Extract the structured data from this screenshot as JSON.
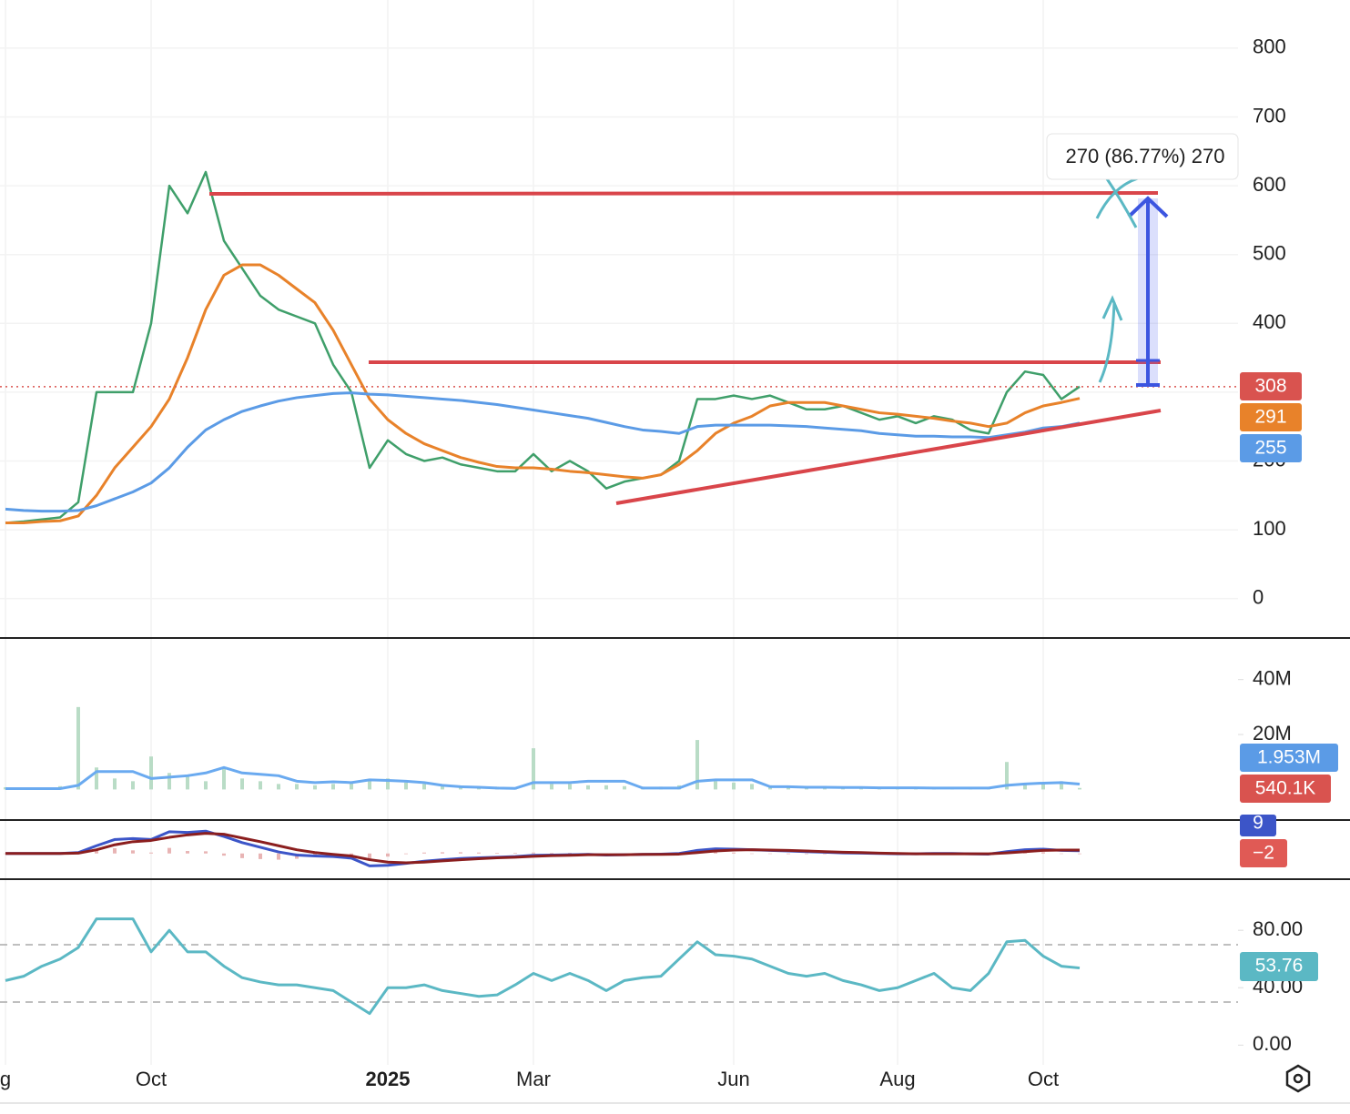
{
  "chart_data": [
    {
      "type": "line",
      "annotation": "270 (86.77%) 270",
      "ylim": [
        -56,
        870
      ],
      "yticks": [
        0,
        100,
        200,
        300,
        400,
        500,
        600,
        700,
        800
      ],
      "grid": true,
      "price_line": true,
      "series": [
        {
          "color": "#3f9f6a",
          "values": [
            110,
            112,
            115,
            118,
            140,
            300,
            300,
            300,
            400,
            600,
            560,
            620,
            520,
            480,
            440,
            420,
            410,
            400,
            340,
            300,
            190,
            230,
            210,
            200,
            205,
            195,
            190,
            185,
            185,
            210,
            185,
            200,
            185,
            160,
            170,
            175,
            180,
            200,
            290,
            290,
            295,
            290,
            295,
            285,
            275,
            275,
            280,
            270,
            260,
            265,
            255,
            265,
            260,
            245,
            240,
            300,
            330,
            325,
            290,
            308
          ]
        },
        {
          "color": "#e8822a",
          "values": [
            110,
            110,
            112,
            113,
            120,
            150,
            190,
            220,
            250,
            290,
            350,
            420,
            470,
            485,
            485,
            470,
            450,
            430,
            390,
            340,
            290,
            260,
            240,
            225,
            215,
            205,
            198,
            192,
            190,
            190,
            188,
            185,
            183,
            180,
            177,
            175,
            180,
            195,
            215,
            240,
            255,
            265,
            280,
            285,
            285,
            285,
            280,
            275,
            270,
            268,
            265,
            262,
            258,
            255,
            250,
            255,
            270,
            280,
            285,
            291
          ]
        },
        {
          "color": "#5b9be6",
          "values": [
            130,
            128,
            127,
            127,
            128,
            135,
            145,
            155,
            168,
            190,
            220,
            245,
            260,
            272,
            280,
            287,
            292,
            295,
            298,
            299,
            297,
            296,
            294,
            292,
            290,
            288,
            285,
            282,
            278,
            274,
            270,
            266,
            262,
            256,
            250,
            245,
            243,
            240,
            250,
            252,
            252,
            252,
            252,
            251,
            250,
            248,
            246,
            244,
            240,
            238,
            236,
            236,
            235,
            235,
            234,
            238,
            242,
            248,
            250,
            255
          ]
        }
      ]
    },
    {
      "type": "bar",
      "ylim": [
        -10.8,
        54.8
      ],
      "yticks": [
        {
          "value": 20,
          "label": "20M"
        },
        {
          "value": 40,
          "label": "40M"
        }
      ],
      "series": [
        {
          "color": "#b9dcc6",
          "values": [
            0.8,
            0.6,
            0.7,
            1.2,
            30,
            8,
            4,
            3,
            12,
            6,
            5,
            3,
            8,
            4,
            3,
            2,
            2,
            1.5,
            2,
            2.5,
            3,
            4,
            2.5,
            2,
            1.5,
            1,
            1,
            1,
            0.8,
            15,
            2,
            2,
            1.5,
            1.5,
            1.2,
            1,
            1,
            1.5,
            18,
            3,
            2.5,
            2,
            1.5,
            1.2,
            1,
            1,
            0.8,
            0.8,
            0.7,
            0.7,
            0.7,
            0.6,
            0.6,
            0.6,
            0.6,
            10,
            2,
            2,
            3,
            0.5401
          ],
          "value_labels": [
            null,
            null,
            null,
            null,
            null,
            null,
            null,
            null,
            null,
            null,
            null,
            null,
            null,
            null,
            null,
            null,
            null,
            null,
            null,
            null,
            null,
            null,
            null,
            null,
            null,
            null,
            null,
            null,
            null,
            null,
            null,
            null,
            null,
            null,
            null,
            null,
            null,
            null,
            null,
            null,
            null,
            null,
            null,
            null,
            null,
            null,
            null,
            null,
            null,
            null,
            null,
            null,
            null,
            null,
            null,
            null,
            null,
            null,
            null,
            "540.1K"
          ]
        },
        {
          "type": "line",
          "color": "#6aaaf0",
          "values": [
            0.3,
            0.3,
            0.3,
            0.3,
            1.5,
            6.5,
            6.5,
            6.5,
            4,
            4.5,
            5,
            6,
            8,
            6,
            5.5,
            5,
            3,
            2.5,
            2.8,
            2.5,
            3.5,
            3.3,
            3,
            2.5,
            1.5,
            1,
            0.8,
            0.5,
            0.4,
            2.5,
            2.5,
            2.5,
            3,
            3,
            3,
            0.5,
            0.5,
            0.5,
            3,
            3.5,
            3.5,
            3.5,
            1,
            1,
            0.8,
            0.8,
            0.7,
            0.7,
            0.6,
            0.6,
            0.6,
            0.5,
            0.5,
            0.5,
            0.5,
            1.5,
            2,
            2.3,
            2.5,
            1.953
          ],
          "value_labels": [
            null,
            null,
            null,
            null,
            null,
            null,
            null,
            null,
            null,
            null,
            null,
            null,
            null,
            null,
            null,
            null,
            null,
            null,
            null,
            null,
            null,
            null,
            null,
            null,
            null,
            null,
            null,
            null,
            null,
            null,
            null,
            null,
            null,
            null,
            null,
            null,
            null,
            null,
            null,
            null,
            null,
            null,
            null,
            null,
            null,
            null,
            null,
            null,
            null,
            null,
            null,
            null,
            null,
            null,
            null,
            null,
            null,
            null,
            null,
            "1.953M"
          ]
        }
      ]
    },
    {
      "type": "line",
      "ylim": [
        -80,
        105
      ],
      "series": [
        {
          "type": "bar",
          "color": "#e8b4b4",
          "values": [
            0,
            0,
            0,
            0,
            2,
            13,
            17,
            10,
            3,
            18,
            8,
            7,
            -7,
            -15,
            -18,
            -20,
            -17,
            -11,
            -7,
            -7,
            -20,
            -10,
            -2,
            3,
            4,
            4,
            3,
            2,
            2,
            3,
            2,
            2,
            1,
            -1,
            0,
            0,
            1,
            2,
            7,
            7,
            3,
            0,
            -1,
            -2,
            -2,
            -2,
            -2,
            -2,
            -1,
            -1,
            0,
            1,
            1,
            0,
            -1,
            4,
            6,
            4,
            -1,
            -2
          ],
          "value_labels": [
            null,
            null,
            null,
            null,
            null,
            null,
            null,
            null,
            null,
            null,
            null,
            null,
            null,
            null,
            null,
            null,
            null,
            null,
            null,
            null,
            null,
            null,
            null,
            null,
            null,
            null,
            null,
            null,
            null,
            null,
            null,
            null,
            null,
            null,
            null,
            null,
            null,
            null,
            null,
            null,
            null,
            null,
            null,
            null,
            null,
            null,
            null,
            null,
            null,
            null,
            null,
            null,
            null,
            null,
            null,
            null,
            null,
            null,
            null,
            "−2"
          ]
        },
        {
          "color": "#3c55c8",
          "values": [
            0,
            0,
            0,
            0,
            3,
            25,
            45,
            48,
            45,
            70,
            68,
            72,
            55,
            35,
            20,
            5,
            -5,
            -8,
            -10,
            -15,
            -40,
            -38,
            -32,
            -25,
            -20,
            -16,
            -14,
            -12,
            -10,
            -6,
            -5,
            -4,
            -3,
            -5,
            -4,
            -3,
            -2,
            0,
            10,
            15,
            14,
            12,
            10,
            8,
            6,
            4,
            2,
            1,
            0,
            -1,
            -1,
            0,
            0,
            -1,
            -2,
            6,
            12,
            14,
            10,
            9
          ]
        },
        {
          "color": "#8b1e1e",
          "values": [
            0,
            0,
            0,
            0,
            1,
            12,
            28,
            38,
            42,
            52,
            60,
            65,
            62,
            50,
            38,
            25,
            12,
            3,
            -3,
            -8,
            -20,
            -28,
            -30,
            -28,
            -24,
            -20,
            -17,
            -14,
            -12,
            -9,
            -7,
            -6,
            -4,
            -4,
            -4,
            -3,
            -3,
            -2,
            3,
            8,
            11,
            12,
            11,
            10,
            8,
            6,
            4,
            3,
            1,
            0,
            -1,
            -1,
            -1,
            -1,
            -1,
            2,
            6,
            10,
            11,
            11
          ]
        }
      ]
    },
    {
      "type": "line",
      "ylim": [
        -13.75,
        115
      ],
      "yticks": [
        {
          "value": 0,
          "label": "0.00"
        },
        {
          "value": 40,
          "label": "40.00"
        },
        {
          "value": 80,
          "label": "80.00"
        }
      ],
      "levels": [
        70,
        30
      ],
      "categories": [
        "g",
        null,
        null,
        null,
        null,
        null,
        null,
        null,
        "Oct",
        null,
        null,
        null,
        null,
        null,
        null,
        null,
        null,
        null,
        null,
        null,
        null,
        "2025",
        null,
        null,
        null,
        null,
        null,
        null,
        null,
        "Mar",
        null,
        null,
        null,
        null,
        null,
        null,
        null,
        null,
        null,
        null,
        "Jun",
        null,
        null,
        null,
        null,
        null,
        null,
        null,
        null,
        "Aug",
        null,
        null,
        null,
        null,
        null,
        null,
        null,
        "Oct",
        null,
        null
      ],
      "series": [
        {
          "color": "#5bb8c4",
          "values": [
            45,
            48,
            55,
            60,
            68,
            88,
            88,
            88,
            65,
            80,
            65,
            65,
            55,
            47,
            44,
            42,
            42,
            40,
            38,
            30,
            22,
            40,
            40,
            42,
            38,
            36,
            34,
            35,
            42,
            50,
            45,
            50,
            45,
            38,
            45,
            47,
            48,
            60,
            72,
            63,
            62,
            60,
            55,
            50,
            48,
            50,
            45,
            42,
            38,
            40,
            45,
            50,
            40,
            38,
            50,
            72,
            73,
            62,
            55,
            53.76
          ]
        }
      ]
    }
  ]
}
